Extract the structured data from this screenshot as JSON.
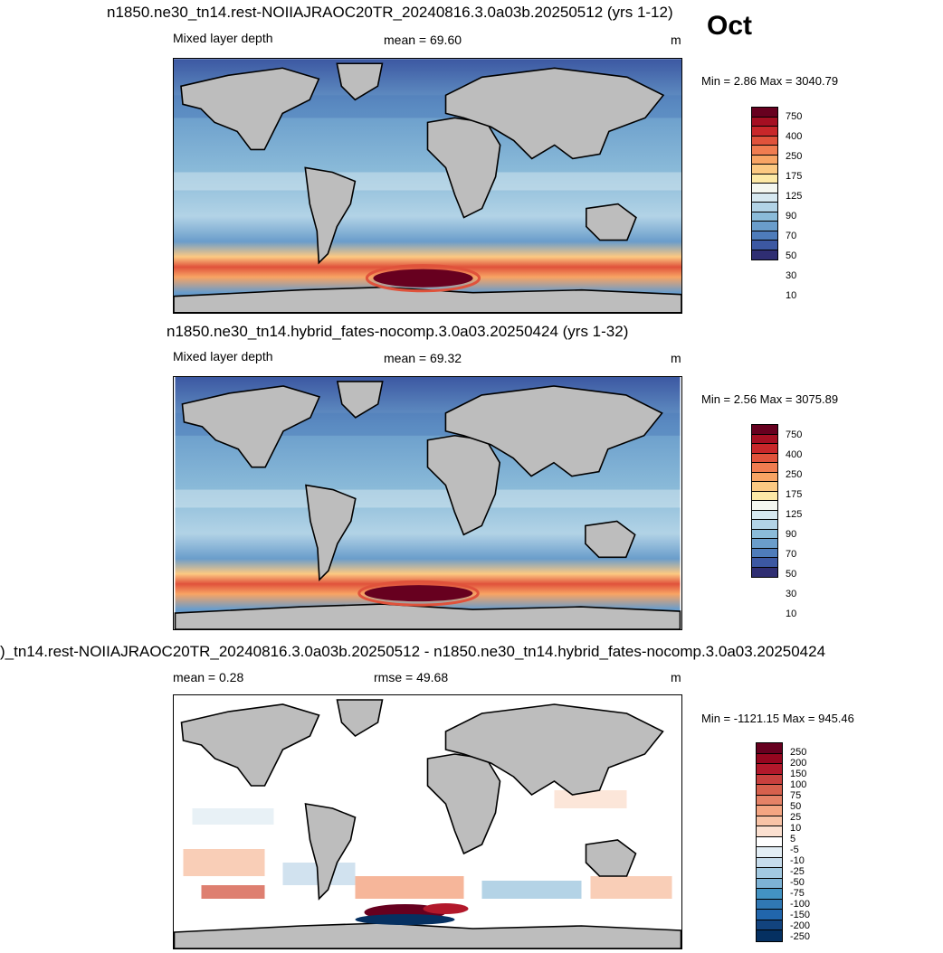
{
  "month": "Oct",
  "panels": [
    {
      "title": "n1850.ne30_tn14.rest-NOIIAJRAOC20TR_20240816.3.0a03b.20250512 (yrs 1-12)",
      "left_label": "Mixed layer depth",
      "center_label": "mean =  69.60",
      "units": "m",
      "minmax": "Min =   2.86 Max = 3040.79",
      "colorbar_labels": [
        "750",
        "400",
        "250",
        "175",
        "125",
        "90",
        "70",
        "50",
        "30",
        "10"
      ],
      "colors": [
        "#67001f",
        "#a50f22",
        "#c8272a",
        "#e0523b",
        "#f07c50",
        "#f8a464",
        "#fcc982",
        "#fde9a6",
        "#f4f7f0",
        "#d6e8f0",
        "#b2d3e6",
        "#8bbbd9",
        "#6a9dcb",
        "#4e7cba",
        "#3c58a2",
        "#2f2e72"
      ]
    },
    {
      "title": "n1850.ne30_tn14.hybrid_fates-nocomp.3.0a03.20250424 (yrs 1-32)",
      "left_label": "Mixed layer depth",
      "center_label": "mean =  69.32",
      "units": "m",
      "minmax": "Min =   2.56 Max = 3075.89",
      "colorbar_labels": [
        "750",
        "400",
        "250",
        "175",
        "125",
        "90",
        "70",
        "50",
        "30",
        "10"
      ],
      "colors": [
        "#67001f",
        "#a50f22",
        "#c8272a",
        "#e0523b",
        "#f07c50",
        "#f8a464",
        "#fcc982",
        "#fde9a6",
        "#f4f7f0",
        "#d6e8f0",
        "#b2d3e6",
        "#8bbbd9",
        "#6a9dcb",
        "#4e7cba",
        "#3c58a2",
        "#2f2e72"
      ]
    },
    {
      "title": ")_tn14.rest-NOIIAJRAOC20TR_20240816.3.0a03b.20250512 - n1850.ne30_tn14.hybrid_fates-nocomp.3.0a03.20250424",
      "left_label": "mean =   0.28",
      "center_label": "rmse =  49.68",
      "units": "m",
      "minmax": "Min = -1121.15 Max = 945.46",
      "colorbar_labels": [
        "250",
        "200",
        "150",
        "100",
        "75",
        "50",
        "25",
        "10",
        "5",
        "-5",
        "-10",
        "-25",
        "-50",
        "-75",
        "-100",
        "-150",
        "-200",
        "-250"
      ],
      "colors": [
        "#67001f",
        "#95061f",
        "#b2182b",
        "#c8403e",
        "#d6604d",
        "#e58267",
        "#f4a582",
        "#f8c3a6",
        "#fbe0d0",
        "#ffffff",
        "#e3eef5",
        "#c6dcec",
        "#a2c9e1",
        "#7db3d6",
        "#4393c3",
        "#3078b4",
        "#2166ac",
        "#12437e",
        "#053061"
      ]
    }
  ]
}
